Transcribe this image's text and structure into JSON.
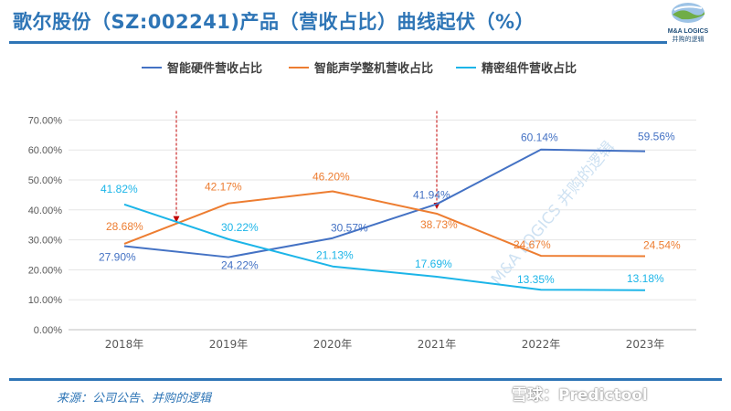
{
  "title": "歌尔股份（SZ:002241)产品（营收占比）曲线起伏（%）",
  "logo": {
    "line1": "M&A LOGICS",
    "line2": "并购的逻辑"
  },
  "source": "来源：公司公告、并购的逻辑",
  "watermark": "雪球：Predictool",
  "diagonal_watermark": "M&A LOGICS 并购的逻辑",
  "colors": {
    "title": "#2E75B6",
    "hardware": "#4472C4",
    "acoustic": "#ED7D31",
    "precision": "#1CB5E8",
    "arrow": "#C00000"
  },
  "chart_data": {
    "type": "line",
    "categories": [
      "2018年",
      "2019年",
      "2020年",
      "2021年",
      "2022年",
      "2023年"
    ],
    "ylim": [
      0,
      70
    ],
    "yticks": [
      "0.00%",
      "10.00%",
      "20.00%",
      "30.00%",
      "40.00%",
      "50.00%",
      "60.00%",
      "70.00%"
    ],
    "legend_position": "top",
    "series": [
      {
        "name": "智能硬件营收占比",
        "color": "#4472C4",
        "values": [
          27.9,
          24.22,
          30.57,
          41.94,
          60.14,
          59.56
        ],
        "labels": [
          "27.90%",
          "24.22%",
          "30.57%",
          "41.94%",
          "60.14%",
          "59.56%"
        ]
      },
      {
        "name": "智能声学整机营收占比",
        "color": "#ED7D31",
        "values": [
          28.68,
          42.17,
          46.2,
          38.73,
          24.67,
          24.54
        ],
        "labels": [
          "28.68%",
          "42.17%",
          "46.20%",
          "38.73%",
          "24.67%",
          "24.54%"
        ]
      },
      {
        "name": "精密组件营收占比",
        "color": "#1CB5E8",
        "values": [
          41.82,
          30.22,
          21.13,
          17.69,
          13.35,
          13.18
        ],
        "labels": [
          "41.82%",
          "30.22%",
          "21.13%",
          "17.69%",
          "13.35%",
          "13.18%"
        ]
      }
    ],
    "annotations": [
      {
        "type": "arrow",
        "x_between": [
          0,
          1
        ],
        "x_frac": 0.5,
        "y_top": 73,
        "y_end": 36
      },
      {
        "type": "arrow",
        "x_between": [
          2,
          3
        ],
        "x_frac": 1.0,
        "y_top": 73,
        "y_end": 40.5
      }
    ]
  }
}
